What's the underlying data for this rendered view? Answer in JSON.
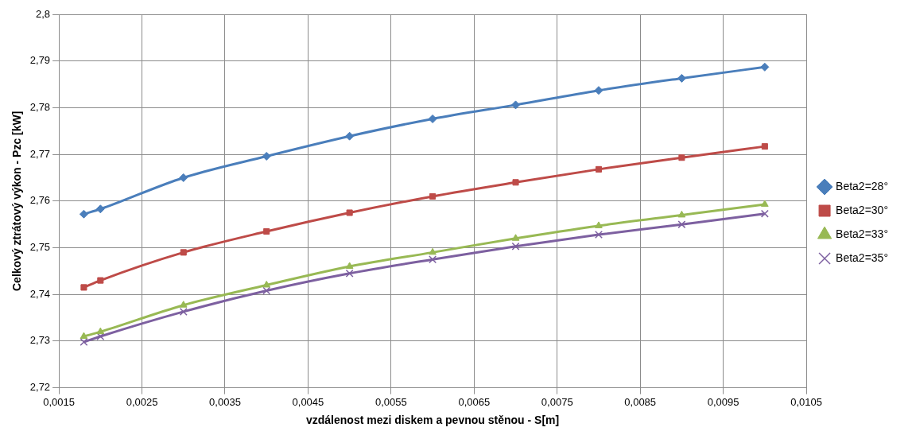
{
  "chart_data": {
    "type": "line",
    "xlabel": "vzdálenost mezi diskem a pevnou stěnou - S[m]",
    "ylabel": "Celkový ztrátový výkon - Pzc [kW]",
    "x": [
      0.0018,
      0.002,
      0.003,
      0.004,
      0.005,
      0.006,
      0.007,
      0.008,
      0.009,
      0.01
    ],
    "series": [
      {
        "name": "Beta2=28°",
        "color": "#4a7ebb",
        "marker": "diamond",
        "values": [
          2.7572,
          2.7583,
          2.765,
          2.7696,
          2.7739,
          2.7776,
          2.7806,
          2.7837,
          2.7863,
          2.7887
        ]
      },
      {
        "name": "Beta2=30°",
        "color": "#be4b48",
        "marker": "square",
        "values": [
          2.7415,
          2.743,
          2.749,
          2.7535,
          2.7575,
          2.761,
          2.764,
          2.7668,
          2.7693,
          2.7717
        ]
      },
      {
        "name": "Beta2=33°",
        "color": "#98b954",
        "marker": "triangle",
        "values": [
          2.731,
          2.732,
          2.7377,
          2.742,
          2.746,
          2.749,
          2.752,
          2.7547,
          2.757,
          2.7593
        ]
      },
      {
        "name": "Beta2=35°",
        "color": "#7d60a0",
        "marker": "cross",
        "values": [
          2.7298,
          2.731,
          2.7363,
          2.7408,
          2.7445,
          2.7475,
          2.7503,
          2.7528,
          2.755,
          2.7573
        ]
      }
    ],
    "xlim": [
      0.0015,
      0.0105
    ],
    "xticks": [
      {
        "value": 0.0015,
        "label": "0,0015"
      },
      {
        "value": 0.0025,
        "label": "0,0025"
      },
      {
        "value": 0.0035,
        "label": "0,0035"
      },
      {
        "value": 0.0045,
        "label": "0,0045"
      },
      {
        "value": 0.0055,
        "label": "0,0055"
      },
      {
        "value": 0.0065,
        "label": "0,0065"
      },
      {
        "value": 0.0075,
        "label": "0,0075"
      },
      {
        "value": 0.0085,
        "label": "0,0085"
      },
      {
        "value": 0.0095,
        "label": "0,0095"
      },
      {
        "value": 0.0105,
        "label": "0,0105"
      }
    ],
    "ylim": [
      2.72,
      2.8
    ],
    "yticks": [
      {
        "value": 2.72,
        "label": "2,72"
      },
      {
        "value": 2.73,
        "label": "2,73"
      },
      {
        "value": 2.74,
        "label": "2,74"
      },
      {
        "value": 2.75,
        "label": "2,75"
      },
      {
        "value": 2.76,
        "label": "2,76"
      },
      {
        "value": 2.77,
        "label": "2,77"
      },
      {
        "value": 2.78,
        "label": "2,78"
      },
      {
        "value": 2.79,
        "label": "2,79"
      },
      {
        "value": 2.8,
        "label": "2,8"
      }
    ],
    "grid": true,
    "legend": "right",
    "line_style": "solid"
  }
}
